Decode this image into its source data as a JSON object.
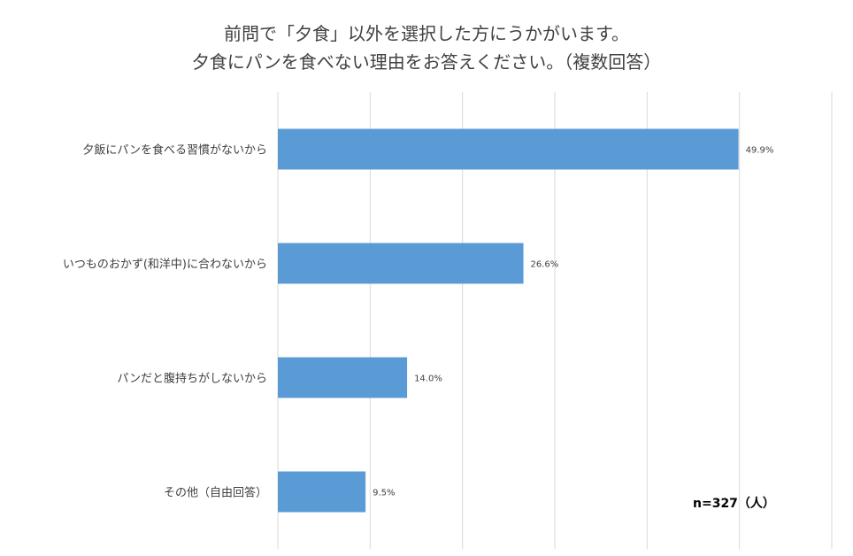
{
  "chart_data": {
    "type": "bar",
    "orientation": "horizontal",
    "title_line1": "前問で「夕食」以外を選択した方にうかがいます。",
    "title_line2": "夕食にパンを食べない理由をお答えください。（複数回答）",
    "categories": [
      "夕飯にパンを食べる習慣がないから",
      "いつものおかず(和洋中)に合わないから",
      "パンだと腹持ちがしないから",
      "その他（自由回答）"
    ],
    "values": [
      49.9,
      26.6,
      14.0,
      9.5
    ],
    "value_labels": [
      "49.9%",
      "26.6%",
      "14.0%",
      "9.5%"
    ],
    "xlim": [
      0,
      60
    ],
    "grid": true,
    "bar_color": "#5B9BD5",
    "gridline_color": "#D9D9D9",
    "note": "n=327（人）"
  }
}
